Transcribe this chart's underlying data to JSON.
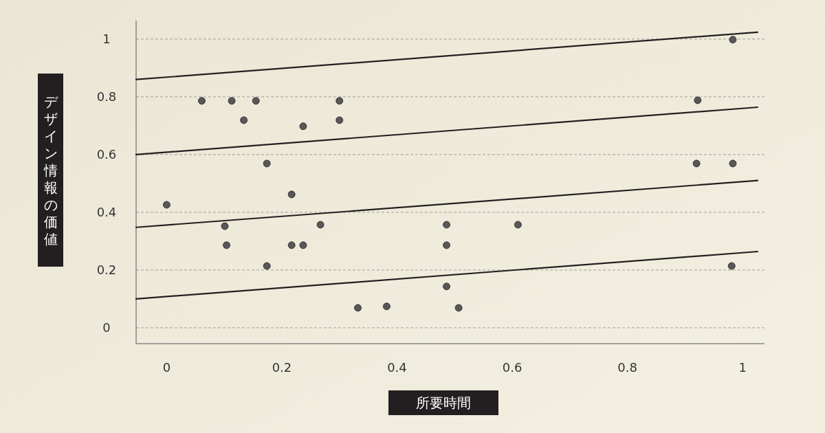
{
  "chart_data": {
    "type": "scatter",
    "xlabel": "所要時間",
    "ylabel": "デザイン情報の価値",
    "xlim": [
      -0.053,
      1.038
    ],
    "ylim": [
      -0.055,
      1.064
    ],
    "xticks": [
      0,
      {
        "value": 0.2,
        "label": "0.2"
      },
      {
        "value": 0.4,
        "label": "0.4"
      },
      {
        "value": 0.6,
        "label": "0.6"
      },
      {
        "value": 0.8,
        "label": "0.8"
      },
      1
    ],
    "yticks": [
      0,
      {
        "value": 0.2,
        "label": "0.2"
      },
      {
        "value": 0.4,
        "label": "0.4"
      },
      {
        "value": 0.6,
        "label": "0.6"
      },
      {
        "value": 0.8,
        "label": "0.8"
      },
      1
    ],
    "grid": "y",
    "series": [
      {
        "marker": "circle",
        "color": "#595757",
        "x": [
          0,
          0.061,
          0.113,
          0.155,
          0.134,
          0.101,
          0.104,
          0.174,
          0.174,
          0.217,
          0.217,
          0.237,
          0.237,
          0.267,
          0.3,
          0.3,
          0.332,
          0.382,
          0.486,
          0.486,
          0.486,
          0.507,
          0.61,
          0.922,
          0.92,
          0.983,
          0.983,
          0.981
        ],
        "values": [
          0.426,
          0.786,
          0.786,
          0.786,
          0.719,
          0.352,
          0.286,
          0.569,
          0.214,
          0.462,
          0.286,
          0.286,
          0.698,
          0.357,
          0.786,
          0.719,
          0.069,
          0.074,
          0.357,
          0.286,
          0.143,
          0.069,
          0.357,
          0.788,
          0.569,
          0.569,
          0.998,
          0.214
        ]
      },
      {
        "type": "line",
        "color": "#231f20",
        "x": [
          -0.053,
          1.026
        ],
        "values": [
          0.86,
          1.024
        ]
      },
      {
        "type": "line",
        "color": "#231f20",
        "x": [
          -0.053,
          1.026
        ],
        "values": [
          0.6,
          0.764
        ]
      },
      {
        "type": "line",
        "color": "#231f20",
        "x": [
          -0.053,
          1.026
        ],
        "values": [
          0.348,
          0.51
        ]
      },
      {
        "type": "line",
        "color": "#231f20",
        "x": [
          -0.053,
          1.026
        ],
        "values": [
          0.1,
          0.264
        ]
      }
    ]
  }
}
